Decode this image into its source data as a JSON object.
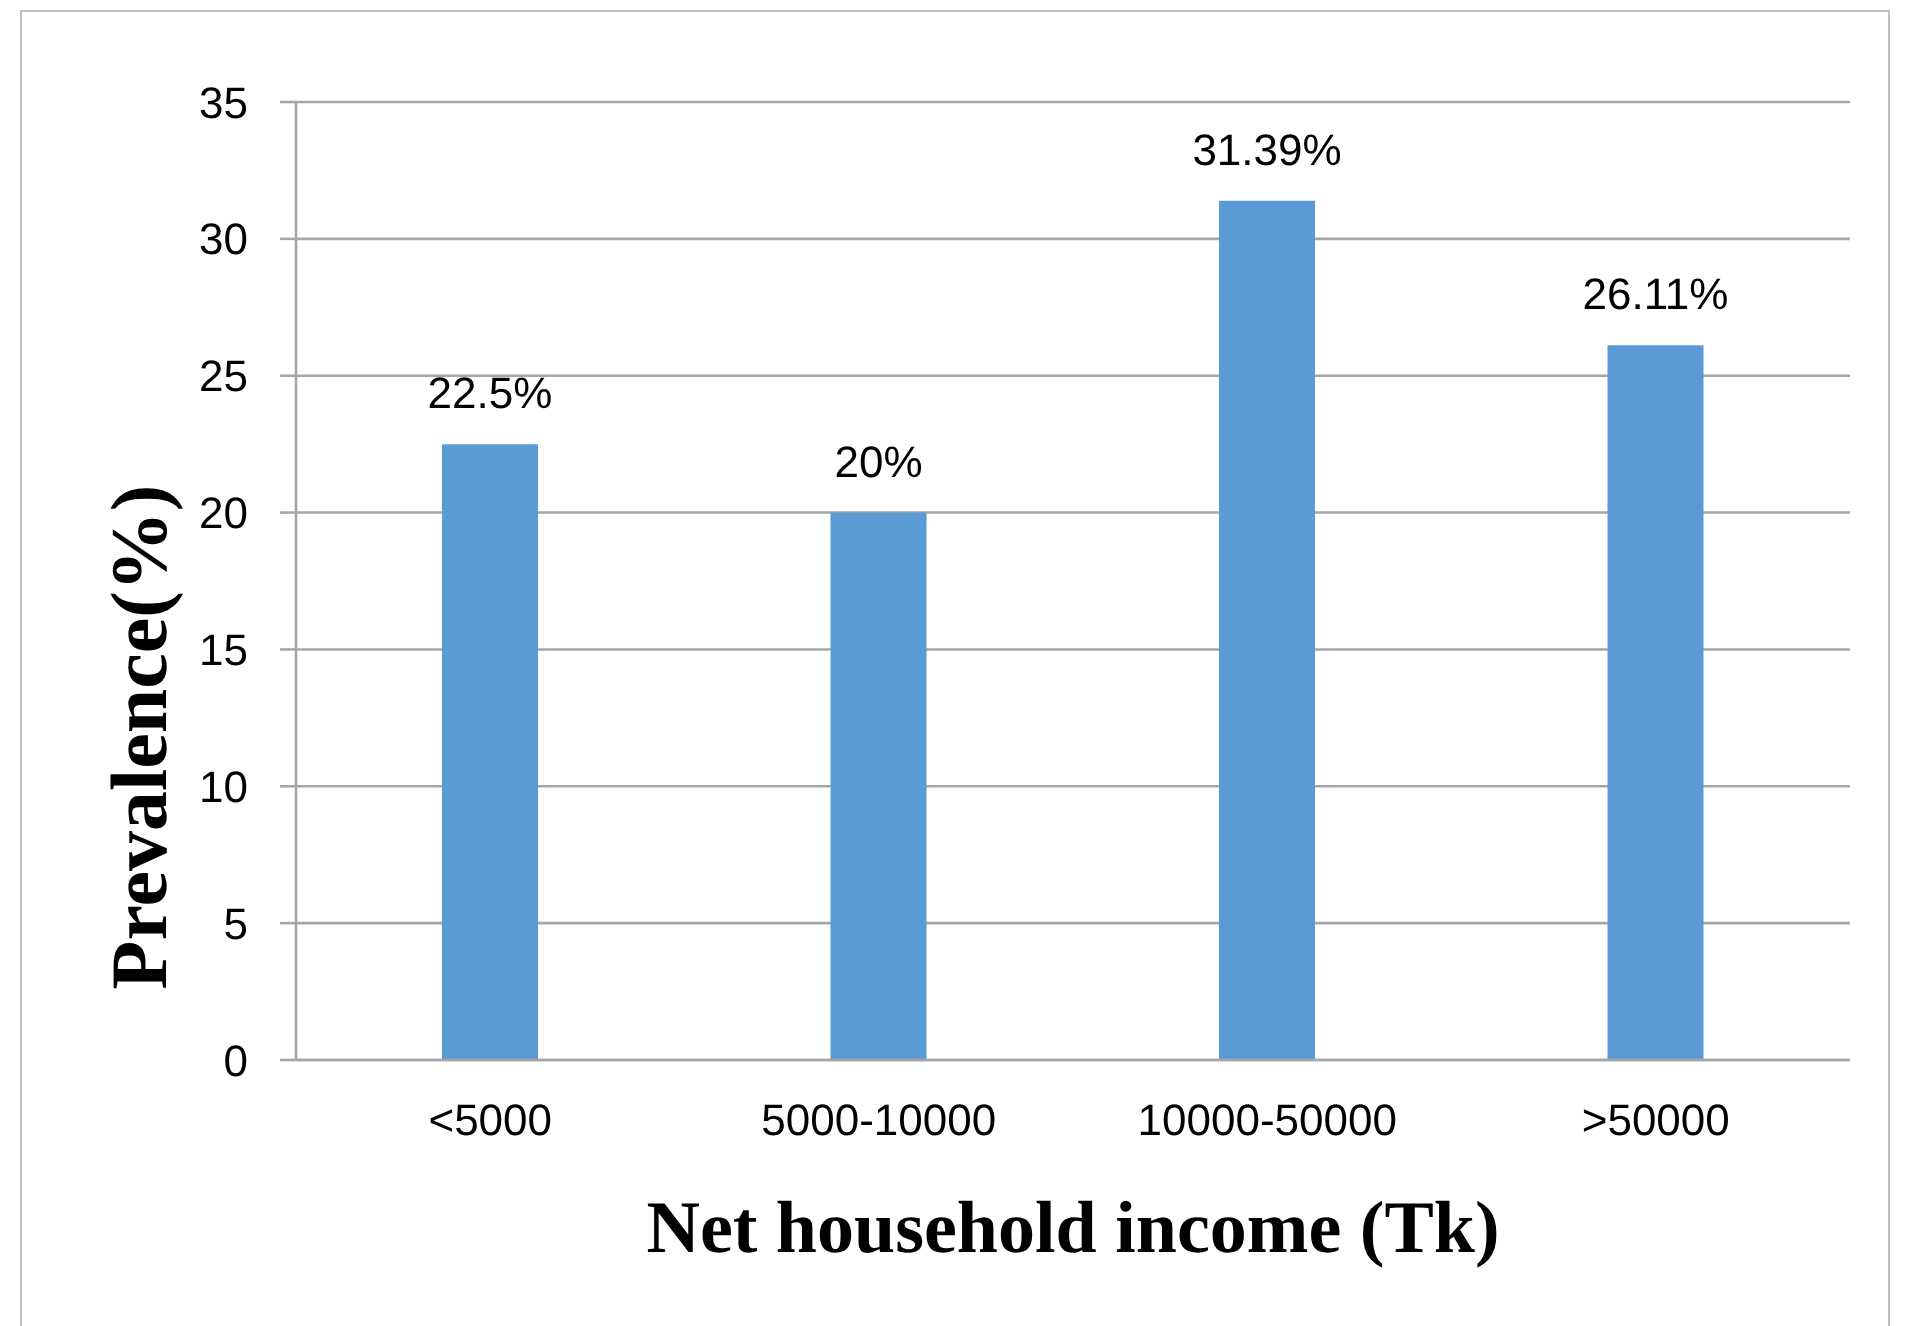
{
  "chart_data": {
    "type": "bar",
    "categories": [
      "<5000",
      "5000-10000",
      "10000-50000",
      ">50000"
    ],
    "values": [
      22.5,
      20,
      31.39,
      26.11
    ],
    "value_labels": [
      "22.5%",
      "20%",
      "31.39%",
      "26.11%"
    ],
    "color": "#5b9bd5",
    "xlabel": "Net household income (Tk)",
    "ylabel": "Prevalence(%)",
    "ylim": [
      0,
      35
    ],
    "yticks": [
      0,
      5,
      10,
      15,
      20,
      25,
      30,
      35
    ],
    "grid": "y"
  }
}
